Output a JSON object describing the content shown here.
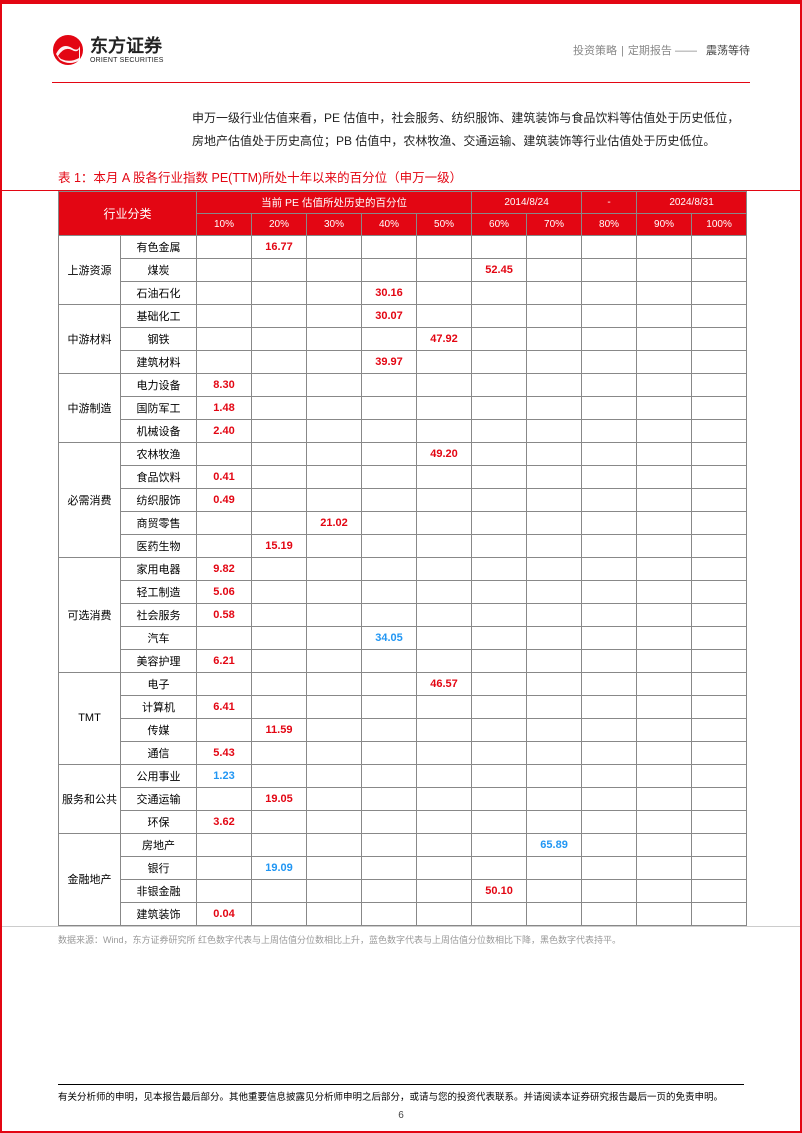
{
  "header": {
    "logo_cn": "东方证券",
    "logo_en": "ORIENT SECURITIES",
    "right_a": "投资策略",
    "right_b": "定期报告",
    "right_c": "震荡等待"
  },
  "intro": "申万一级行业估值来看，PE 估值中，社会服务、纺织服饰、建筑装饰与食品饮料等估值处于历史低位，房地产估值处于历史高位；PB 估值中，农林牧渔、交通运输、建筑装饰等行业估值处于历史低位。",
  "table": {
    "title": "表 1：本月 A 股各行业指数 PE(TTM)所处十年以来的百分位（申万一级）",
    "header_cat": "行业分类",
    "header_main": "当前 PE 估值所处历史的百分位",
    "period_from": "2014/8/24",
    "period_sep": "-",
    "period_to": "2024/8/31",
    "pct_cols": [
      "10%",
      "20%",
      "30%",
      "40%",
      "50%",
      "60%",
      "70%",
      "80%",
      "90%",
      "100%"
    ],
    "groups": [
      {
        "cat": "上游资源",
        "rows": [
          {
            "sub": "有色金属",
            "cells": {
              "20%": {
                "v": "16.77",
                "c": "red"
              }
            }
          },
          {
            "sub": "煤炭",
            "cells": {
              "60%": {
                "v": "52.45",
                "c": "red"
              }
            }
          },
          {
            "sub": "石油石化",
            "cells": {
              "40%": {
                "v": "30.16",
                "c": "red"
              }
            }
          }
        ]
      },
      {
        "cat": "中游材料",
        "rows": [
          {
            "sub": "基础化工",
            "cells": {
              "40%": {
                "v": "30.07",
                "c": "red"
              }
            }
          },
          {
            "sub": "钢铁",
            "cells": {
              "50%": {
                "v": "47.92",
                "c": "red"
              }
            }
          },
          {
            "sub": "建筑材料",
            "cells": {
              "40%": {
                "v": "39.97",
                "c": "red"
              }
            }
          }
        ]
      },
      {
        "cat": "中游制造",
        "rows": [
          {
            "sub": "电力设备",
            "cells": {
              "10%": {
                "v": "8.30",
                "c": "red"
              }
            }
          },
          {
            "sub": "国防军工",
            "cells": {
              "10%": {
                "v": "1.48",
                "c": "red"
              }
            }
          },
          {
            "sub": "机械设备",
            "cells": {
              "10%": {
                "v": "2.40",
                "c": "red"
              }
            }
          }
        ]
      },
      {
        "cat": "必需消费",
        "rows": [
          {
            "sub": "农林牧渔",
            "cells": {
              "50%": {
                "v": "49.20",
                "c": "red"
              }
            }
          },
          {
            "sub": "食品饮料",
            "cells": {
              "10%": {
                "v": "0.41",
                "c": "red"
              }
            }
          },
          {
            "sub": "纺织服饰",
            "cells": {
              "10%": {
                "v": "0.49",
                "c": "red"
              }
            }
          },
          {
            "sub": "商贸零售",
            "cells": {
              "30%": {
                "v": "21.02",
                "c": "red"
              }
            }
          },
          {
            "sub": "医药生物",
            "cells": {
              "20%": {
                "v": "15.19",
                "c": "red"
              }
            }
          }
        ]
      },
      {
        "cat": "可选消费",
        "rows": [
          {
            "sub": "家用电器",
            "cells": {
              "10%": {
                "v": "9.82",
                "c": "red"
              }
            }
          },
          {
            "sub": "轻工制造",
            "cells": {
              "10%": {
                "v": "5.06",
                "c": "red"
              }
            }
          },
          {
            "sub": "社会服务",
            "cells": {
              "10%": {
                "v": "0.58",
                "c": "red"
              }
            }
          },
          {
            "sub": "汽车",
            "cells": {
              "40%": {
                "v": "34.05",
                "c": "blue"
              }
            }
          },
          {
            "sub": "美容护理",
            "cells": {
              "10%": {
                "v": "6.21",
                "c": "red"
              }
            }
          }
        ]
      },
      {
        "cat": "TMT",
        "rows": [
          {
            "sub": "电子",
            "cells": {
              "50%": {
                "v": "46.57",
                "c": "red"
              }
            }
          },
          {
            "sub": "计算机",
            "cells": {
              "10%": {
                "v": "6.41",
                "c": "red"
              }
            }
          },
          {
            "sub": "传媒",
            "cells": {
              "20%": {
                "v": "11.59",
                "c": "red"
              }
            }
          },
          {
            "sub": "通信",
            "cells": {
              "10%": {
                "v": "5.43",
                "c": "red"
              }
            }
          }
        ]
      },
      {
        "cat": "服务和公共",
        "rows": [
          {
            "sub": "公用事业",
            "cells": {
              "10%": {
                "v": "1.23",
                "c": "blue"
              }
            }
          },
          {
            "sub": "交通运输",
            "cells": {
              "20%": {
                "v": "19.05",
                "c": "red"
              }
            }
          },
          {
            "sub": "环保",
            "cells": {
              "10%": {
                "v": "3.62",
                "c": "red"
              }
            }
          }
        ]
      },
      {
        "cat": "金融地产",
        "rows": [
          {
            "sub": "房地产",
            "cells": {
              "70%": {
                "v": "65.89",
                "c": "blue"
              }
            }
          },
          {
            "sub": "银行",
            "cells": {
              "20%": {
                "v": "19.09",
                "c": "blue"
              }
            }
          },
          {
            "sub": "非银金融",
            "cells": {
              "60%": {
                "v": "50.10",
                "c": "red"
              }
            }
          },
          {
            "sub": "建筑装饰",
            "cells": {
              "10%": {
                "v": "0.04",
                "c": "red"
              }
            }
          }
        ]
      }
    ],
    "footnote": "数据来源：Wind，东方证券研究所   红色数字代表与上周估值分位数相比上升，蓝色数字代表与上周估值分位数相比下降，黑色数字代表持平。"
  },
  "footer": "有关分析师的申明，见本报告最后部分。其他重要信息披露见分析师申明之后部分，或请与您的投资代表联系。并请阅读本证券研究报告最后一页的免责申明。",
  "page_no": "6",
  "colors": {
    "brand_red": "#e30613",
    "blue": "#2196f3",
    "grey_text": "#888"
  }
}
